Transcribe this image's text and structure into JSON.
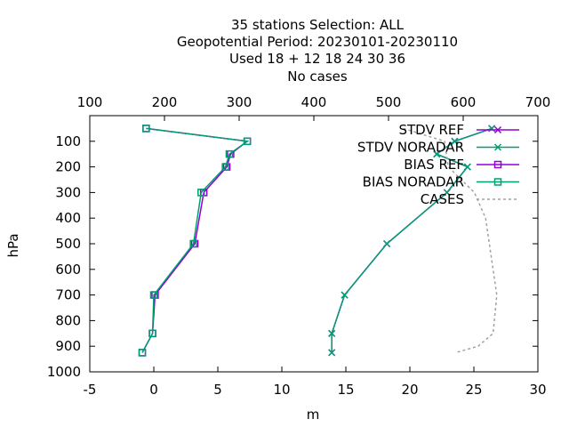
{
  "chart_data": {
    "type": "line",
    "title_lines": [
      "35 stations Selection: ALL",
      "Geopotential  Period: 20230101-20230110",
      "Used  18 + 12 18 24 30 36",
      "No cases"
    ],
    "xlabel": "m",
    "ylabel": "hPa",
    "xlim": [
      -5,
      30
    ],
    "ylim": [
      1000,
      0
    ],
    "x_ticks": [
      "-5",
      "0",
      "5",
      "10",
      "15",
      "20",
      "25",
      "30"
    ],
    "y_ticks": [
      "100",
      "200",
      "300",
      "400",
      "500",
      "600",
      "700",
      "800",
      "900",
      "1000"
    ],
    "x2lim": [
      100,
      700
    ],
    "x2_ticks": [
      "100",
      "200",
      "300",
      "400",
      "500",
      "600",
      "700"
    ],
    "legend_position": "top-right",
    "colors": {
      "ref": "#9400d3",
      "noradar": "#009e73",
      "cases": "#a0a0a0"
    },
    "levels": [
      50,
      100,
      150,
      200,
      300,
      500,
      700,
      850,
      925
    ],
    "series": [
      {
        "name": "STDV REF",
        "marker": "x",
        "color": "#9400d3",
        "x": [
          26.4,
          23.5,
          22.1,
          24.5,
          22.9,
          18.2,
          14.9,
          13.9,
          13.9
        ]
      },
      {
        "name": "STDV NORADAR",
        "marker": "x",
        "color": "#009e73",
        "x": [
          26.4,
          23.5,
          22.1,
          24.5,
          22.9,
          18.2,
          14.9,
          13.9,
          13.9
        ]
      },
      {
        "name": "BIAS REF",
        "marker": "square",
        "color": "#9400d3",
        "x": [
          -0.6,
          7.3,
          6.0,
          5.7,
          3.9,
          3.2,
          0.1,
          -0.1,
          -0.9
        ]
      },
      {
        "name": "BIAS NORADAR",
        "marker": "square",
        "color": "#009e73",
        "x": [
          -0.6,
          7.3,
          5.9,
          5.6,
          3.7,
          3.1,
          0.0,
          -0.1,
          -0.9
        ]
      },
      {
        "name": "CASES",
        "marker": "none",
        "color": "#a0a0a0",
        "dashed": true,
        "axis": "x2",
        "points": [
          [
            520,
            50
          ],
          [
            575,
            100
          ],
          [
            580,
            200
          ],
          [
            615,
            300
          ],
          [
            630,
            400
          ],
          [
            635,
            500
          ],
          [
            645,
            700
          ],
          [
            640,
            850
          ],
          [
            620,
            900
          ],
          [
            590,
            925
          ]
        ]
      }
    ]
  }
}
